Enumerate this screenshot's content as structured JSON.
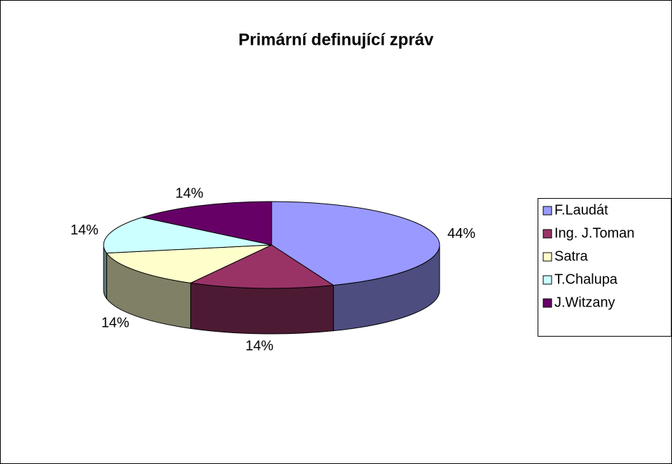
{
  "chart_data": {
    "type": "pie",
    "title": "Primární definující zpráv",
    "categories": [
      "F.Laudát",
      "Ing. J.Toman",
      "Satra",
      "T.Chalupa",
      "J.Witzany"
    ],
    "values": [
      44,
      14,
      14,
      14,
      14
    ],
    "value_labels": [
      "44%",
      "14%",
      "14%",
      "14%",
      "14%"
    ],
    "colors": [
      "#9999ff",
      "#993366",
      "#ffffcc",
      "#ccffff",
      "#660066"
    ],
    "legend": "right",
    "three_d": true
  }
}
